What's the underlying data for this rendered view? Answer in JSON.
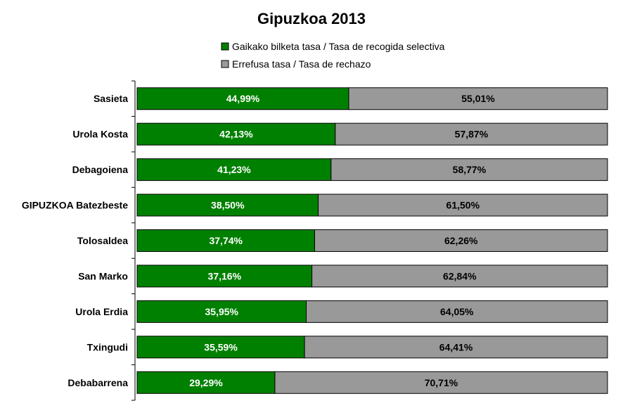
{
  "chart_data": {
    "type": "bar",
    "orientation": "horizontal",
    "stacked": "percent",
    "title": "Gipuzkoa 2013",
    "categories": [
      "Sasieta",
      "Urola Kosta",
      "Debagoiena",
      "GIPUZKOA Batezbeste",
      "Tolosaldea",
      "San Marko",
      "Urola Erdia",
      "Txingudi",
      "Debabarrena"
    ],
    "series": [
      {
        "name": "Gaikako bilketa tasa / Tasa de recogida selectiva",
        "color": "#008000",
        "values": [
          44.99,
          42.13,
          41.23,
          38.5,
          37.74,
          37.16,
          35.95,
          35.59,
          29.29
        ],
        "labels": [
          "44,99%",
          "42,13%",
          "41,23%",
          "38,50%",
          "37,74%",
          "37,16%",
          "35,95%",
          "35,59%",
          "29,29%"
        ]
      },
      {
        "name": "Errefusa tasa / Tasa de rechazo",
        "color": "#999999",
        "values": [
          55.01,
          57.87,
          58.77,
          61.5,
          62.26,
          62.84,
          64.05,
          64.41,
          70.71
        ],
        "labels": [
          "55,01%",
          "57,87%",
          "58,77%",
          "61,50%",
          "62,26%",
          "62,84%",
          "64,05%",
          "64,41%",
          "70,71%"
        ]
      }
    ],
    "xlim": [
      0,
      100
    ],
    "legend_position": "top",
    "grid": false
  }
}
